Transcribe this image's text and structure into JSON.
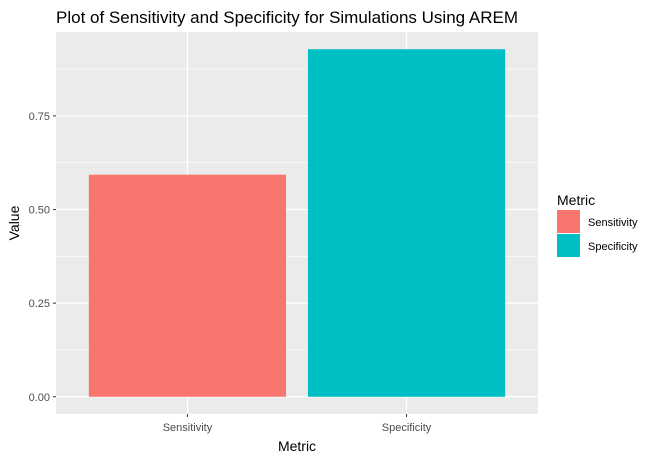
{
  "chart_data": {
    "type": "bar",
    "title": "Plot of Sensitivity and Specificity for Simulations Using AREM",
    "xlabel": "Metric",
    "ylabel": "Value",
    "categories": [
      "Sensitivity",
      "Specificity"
    ],
    "values": [
      0.593,
      0.928
    ],
    "ylim": [
      0,
      0.95
    ],
    "yticks": [
      "0.00",
      "0.25",
      "0.50",
      "0.75"
    ],
    "ytick_values": [
      0,
      0.25,
      0.5,
      0.75
    ],
    "grid": true,
    "colors": [
      "#F8766D",
      "#00BFC4"
    ],
    "legend": {
      "title": "Metric",
      "placement": "right",
      "entries": [
        "Sensitivity",
        "Specificity"
      ]
    }
  }
}
